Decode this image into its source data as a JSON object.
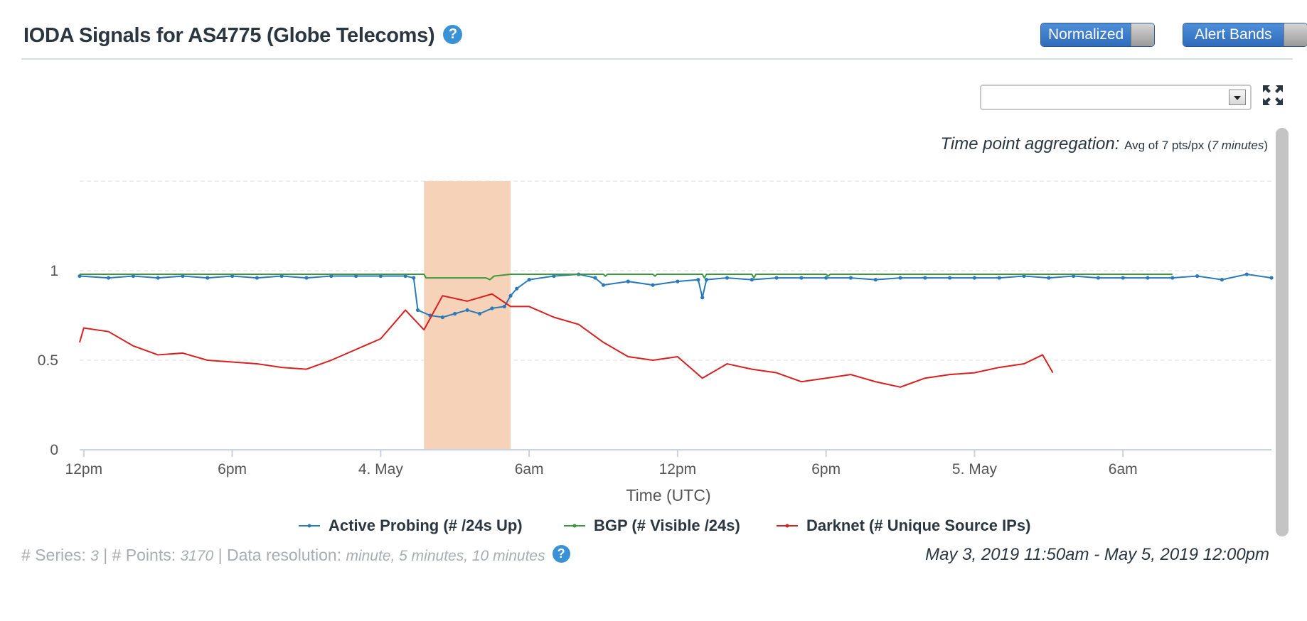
{
  "header": {
    "title": "IODA Signals for AS4775 (Globe Telecoms)",
    "help_icon": "question-circle-icon",
    "toggles": [
      {
        "label": "Normalized"
      },
      {
        "label": "Alert Bands"
      }
    ]
  },
  "controls": {
    "select_value": "",
    "expand_icon": "expand-arrows-icon"
  },
  "aggregation": {
    "label": "Time point aggregation:",
    "value_prefix": "Avg of 7 pts/px (",
    "value_italic": "7 minutes",
    "value_suffix": ")"
  },
  "colors": {
    "active_probing": "#2a7ab9",
    "bgp": "#3a9a3a",
    "darknet": "#d92020",
    "alert_band": "#f6d2b8"
  },
  "chart_data": {
    "type": "line",
    "xlabel": "Time (UTC)",
    "ylabel": "",
    "x_range": [
      "2019-05-03 11:50",
      "2019-05-05 12:00"
    ],
    "ylim": [
      0,
      1.5
    ],
    "y_ticks": [
      {
        "value": 0,
        "label": "0"
      },
      {
        "value": 0.5,
        "label": "0.5"
      },
      {
        "value": 1,
        "label": "1"
      }
    ],
    "x_ticks": [
      {
        "time": "2019-05-03 12:00",
        "label": "12pm"
      },
      {
        "time": "2019-05-03 18:00",
        "label": "6pm"
      },
      {
        "time": "2019-05-04 00:00",
        "label": "4. May"
      },
      {
        "time": "2019-05-04 06:00",
        "label": "6am"
      },
      {
        "time": "2019-05-04 12:00",
        "label": "12pm"
      },
      {
        "time": "2019-05-04 18:00",
        "label": "6pm"
      },
      {
        "time": "2019-05-05 00:00",
        "label": "5. May"
      },
      {
        "time": "2019-05-05 06:00",
        "label": "6am"
      }
    ],
    "alert_bands": [
      {
        "start": "2019-05-04 01:45",
        "end": "2019-05-04 05:15"
      }
    ],
    "series": [
      {
        "name": "Active Probing (# /24s Up)",
        "points": [
          [
            "2019-05-03 11:50",
            0.97
          ],
          [
            "2019-05-03 13:00",
            0.96
          ],
          [
            "2019-05-03 14:00",
            0.97
          ],
          [
            "2019-05-03 15:00",
            0.96
          ],
          [
            "2019-05-03 16:00",
            0.97
          ],
          [
            "2019-05-03 17:00",
            0.96
          ],
          [
            "2019-05-03 18:00",
            0.97
          ],
          [
            "2019-05-03 19:00",
            0.96
          ],
          [
            "2019-05-03 20:00",
            0.97
          ],
          [
            "2019-05-03 21:00",
            0.96
          ],
          [
            "2019-05-03 22:00",
            0.97
          ],
          [
            "2019-05-03 23:00",
            0.97
          ],
          [
            "2019-05-04 00:00",
            0.97
          ],
          [
            "2019-05-04 01:00",
            0.97
          ],
          [
            "2019-05-04 01:20",
            0.96
          ],
          [
            "2019-05-04 01:30",
            0.78
          ],
          [
            "2019-05-04 02:00",
            0.75
          ],
          [
            "2019-05-04 02:30",
            0.74
          ],
          [
            "2019-05-04 03:00",
            0.76
          ],
          [
            "2019-05-04 03:30",
            0.78
          ],
          [
            "2019-05-04 04:00",
            0.76
          ],
          [
            "2019-05-04 04:30",
            0.79
          ],
          [
            "2019-05-04 05:00",
            0.8
          ],
          [
            "2019-05-04 05:15",
            0.86
          ],
          [
            "2019-05-04 05:30",
            0.9
          ],
          [
            "2019-05-04 06:00",
            0.95
          ],
          [
            "2019-05-04 07:00",
            0.97
          ],
          [
            "2019-05-04 08:00",
            0.98
          ],
          [
            "2019-05-04 08:40",
            0.96
          ],
          [
            "2019-05-04 09:00",
            0.92
          ],
          [
            "2019-05-04 10:00",
            0.94
          ],
          [
            "2019-05-04 11:00",
            0.92
          ],
          [
            "2019-05-04 12:00",
            0.94
          ],
          [
            "2019-05-04 12:50",
            0.95
          ],
          [
            "2019-05-04 13:00",
            0.85
          ],
          [
            "2019-05-04 13:10",
            0.95
          ],
          [
            "2019-05-04 14:00",
            0.96
          ],
          [
            "2019-05-04 15:00",
            0.95
          ],
          [
            "2019-05-04 16:00",
            0.96
          ],
          [
            "2019-05-04 17:00",
            0.96
          ],
          [
            "2019-05-04 18:00",
            0.96
          ],
          [
            "2019-05-04 19:00",
            0.96
          ],
          [
            "2019-05-04 20:00",
            0.95
          ],
          [
            "2019-05-04 21:00",
            0.96
          ],
          [
            "2019-05-04 22:00",
            0.96
          ],
          [
            "2019-05-04 23:00",
            0.96
          ],
          [
            "2019-05-05 00:00",
            0.96
          ],
          [
            "2019-05-05 01:00",
            0.96
          ],
          [
            "2019-05-05 02:00",
            0.97
          ],
          [
            "2019-05-05 03:00",
            0.96
          ],
          [
            "2019-05-05 04:00",
            0.97
          ],
          [
            "2019-05-05 05:00",
            0.96
          ],
          [
            "2019-05-05 06:00",
            0.96
          ],
          [
            "2019-05-05 07:00",
            0.96
          ],
          [
            "2019-05-05 08:00",
            0.96
          ],
          [
            "2019-05-05 09:00",
            0.97
          ],
          [
            "2019-05-05 10:00",
            0.95
          ],
          [
            "2019-05-05 11:00",
            0.98
          ],
          [
            "2019-05-05 12:00",
            0.96
          ]
        ]
      },
      {
        "name": "BGP (# Visible /24s)",
        "points": [
          [
            "2019-05-03 11:50",
            0.98
          ],
          [
            "2019-05-04 01:45",
            0.98
          ],
          [
            "2019-05-04 01:50",
            0.96
          ],
          [
            "2019-05-04 04:15",
            0.96
          ],
          [
            "2019-05-04 04:25",
            0.95
          ],
          [
            "2019-05-04 04:35",
            0.97
          ],
          [
            "2019-05-04 05:15",
            0.98
          ],
          [
            "2019-05-04 09:00",
            0.98
          ],
          [
            "2019-05-04 09:05",
            0.97
          ],
          [
            "2019-05-04 09:10",
            0.98
          ],
          [
            "2019-05-04 11:00",
            0.98
          ],
          [
            "2019-05-04 11:05",
            0.97
          ],
          [
            "2019-05-04 11:10",
            0.98
          ],
          [
            "2019-05-04 13:00",
            0.98
          ],
          [
            "2019-05-04 13:05",
            0.96
          ],
          [
            "2019-05-04 13:10",
            0.98
          ],
          [
            "2019-05-04 15:00",
            0.98
          ],
          [
            "2019-05-04 15:05",
            0.96
          ],
          [
            "2019-05-04 15:10",
            0.98
          ],
          [
            "2019-05-04 18:00",
            0.98
          ],
          [
            "2019-05-04 18:05",
            0.97
          ],
          [
            "2019-05-04 18:10",
            0.98
          ],
          [
            "2019-05-05 08:00",
            0.98
          ]
        ]
      },
      {
        "name": "Darknet (# Unique Source IPs)",
        "points": [
          [
            "2019-05-03 11:50",
            0.6
          ],
          [
            "2019-05-03 12:00",
            0.68
          ],
          [
            "2019-05-03 13:00",
            0.66
          ],
          [
            "2019-05-03 14:00",
            0.58
          ],
          [
            "2019-05-03 15:00",
            0.53
          ],
          [
            "2019-05-03 16:00",
            0.54
          ],
          [
            "2019-05-03 17:00",
            0.5
          ],
          [
            "2019-05-03 18:00",
            0.49
          ],
          [
            "2019-05-03 19:00",
            0.48
          ],
          [
            "2019-05-03 20:00",
            0.46
          ],
          [
            "2019-05-03 21:00",
            0.45
          ],
          [
            "2019-05-03 22:00",
            0.5
          ],
          [
            "2019-05-03 23:00",
            0.56
          ],
          [
            "2019-05-04 00:00",
            0.62
          ],
          [
            "2019-05-04 01:00",
            0.78
          ],
          [
            "2019-05-04 01:45",
            0.67
          ],
          [
            "2019-05-04 02:30",
            0.86
          ],
          [
            "2019-05-04 03:30",
            0.83
          ],
          [
            "2019-05-04 04:30",
            0.87
          ],
          [
            "2019-05-04 05:15",
            0.8
          ],
          [
            "2019-05-04 06:00",
            0.8
          ],
          [
            "2019-05-04 07:00",
            0.74
          ],
          [
            "2019-05-04 08:00",
            0.7
          ],
          [
            "2019-05-04 09:00",
            0.6
          ],
          [
            "2019-05-04 10:00",
            0.52
          ],
          [
            "2019-05-04 11:00",
            0.5
          ],
          [
            "2019-05-04 12:00",
            0.52
          ],
          [
            "2019-05-04 13:00",
            0.4
          ],
          [
            "2019-05-04 14:00",
            0.48
          ],
          [
            "2019-05-04 15:00",
            0.45
          ],
          [
            "2019-05-04 16:00",
            0.43
          ],
          [
            "2019-05-04 17:00",
            0.38
          ],
          [
            "2019-05-04 18:00",
            0.4
          ],
          [
            "2019-05-04 19:00",
            0.42
          ],
          [
            "2019-05-04 20:00",
            0.38
          ],
          [
            "2019-05-04 21:00",
            0.35
          ],
          [
            "2019-05-04 22:00",
            0.4
          ],
          [
            "2019-05-04 23:00",
            0.42
          ],
          [
            "2019-05-05 00:00",
            0.43
          ],
          [
            "2019-05-05 01:00",
            0.46
          ],
          [
            "2019-05-05 02:00",
            0.48
          ],
          [
            "2019-05-05 02:45",
            0.53
          ],
          [
            "2019-05-05 03:10",
            0.43
          ]
        ]
      }
    ],
    "legend": "bottom-center",
    "grid": "horizontal-dashed"
  },
  "footer": {
    "series_label": "# Series:",
    "series_value": "3",
    "points_label": "| # Points:",
    "points_value": "3170",
    "resolution_label": "| Data resolution:",
    "resolution_value": "minute, 5 minutes, 10 minutes",
    "date_range": "May 3, 2019 11:50am - May 5, 2019 12:00pm"
  }
}
